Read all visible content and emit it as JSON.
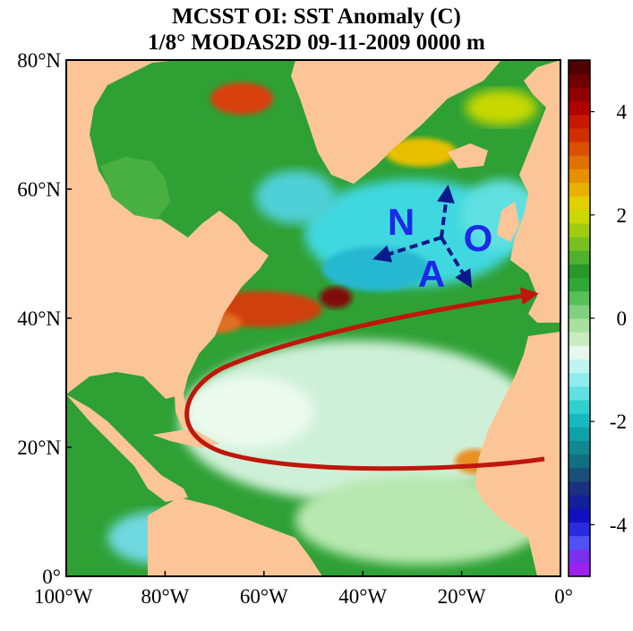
{
  "title": {
    "line1": "MCSST OI:  SST Anomaly (C)",
    "line2": "1/8° MODAS2D 09-11-2009 0000 m"
  },
  "axes": {
    "lat_ticks": [
      {
        "label": "80°N",
        "value": 80
      },
      {
        "label": "60°N",
        "value": 60
      },
      {
        "label": "40°N",
        "value": 40
      },
      {
        "label": "20°N",
        "value": 20
      },
      {
        "label": "0°",
        "value": 0
      }
    ],
    "lon_ticks": [
      {
        "label": "100°W",
        "value": -100
      },
      {
        "label": "80°W",
        "value": -80
      },
      {
        "label": "60°W",
        "value": -60
      },
      {
        "label": "40°W",
        "value": -40
      },
      {
        "label": "20°W",
        "value": -20
      },
      {
        "label": "0°",
        "value": 0
      }
    ]
  },
  "colorbar": {
    "tick_labels": [
      {
        "label": "4",
        "value": 4
      },
      {
        "label": "2",
        "value": 2
      },
      {
        "label": "0",
        "value": 0
      },
      {
        "label": "-2",
        "value": -2
      },
      {
        "label": "-4",
        "value": -4
      }
    ],
    "range": [
      -5,
      5
    ],
    "colors": [
      "#a020f0",
      "#7b30f0",
      "#5050f5",
      "#2a2ae0",
      "#1010c0",
      "#10209a",
      "#1a3080",
      "#18507a",
      "#107080",
      "#108a90",
      "#10a0a8",
      "#18b8c0",
      "#30d0d0",
      "#60e0e0",
      "#90ecec",
      "#c0f4f0",
      "#e6f8ee",
      "#c8ecc0",
      "#a8e0a0",
      "#80d080",
      "#58c058",
      "#30a838",
      "#289828",
      "#50b030",
      "#78c020",
      "#a0cc10",
      "#c8d800",
      "#e0d000",
      "#e8b000",
      "#e89000",
      "#e07000",
      "#d85000",
      "#d03000",
      "#c81800",
      "#b00000",
      "#900000",
      "#700000",
      "#500000"
    ]
  },
  "annotations": {
    "letter_n": "N",
    "letter_a": "A",
    "letter_o": "O"
  },
  "colors": {
    "land": "#fcc597",
    "ocean_green": "#2ea034",
    "ocean_light": "#cff0d8",
    "ocean_cyan": "#40d8e0",
    "warm": "#d04010",
    "arrow_red": "#c0160c",
    "arrow_blue": "#0a1a8a",
    "letters": "#1a2ae8"
  }
}
